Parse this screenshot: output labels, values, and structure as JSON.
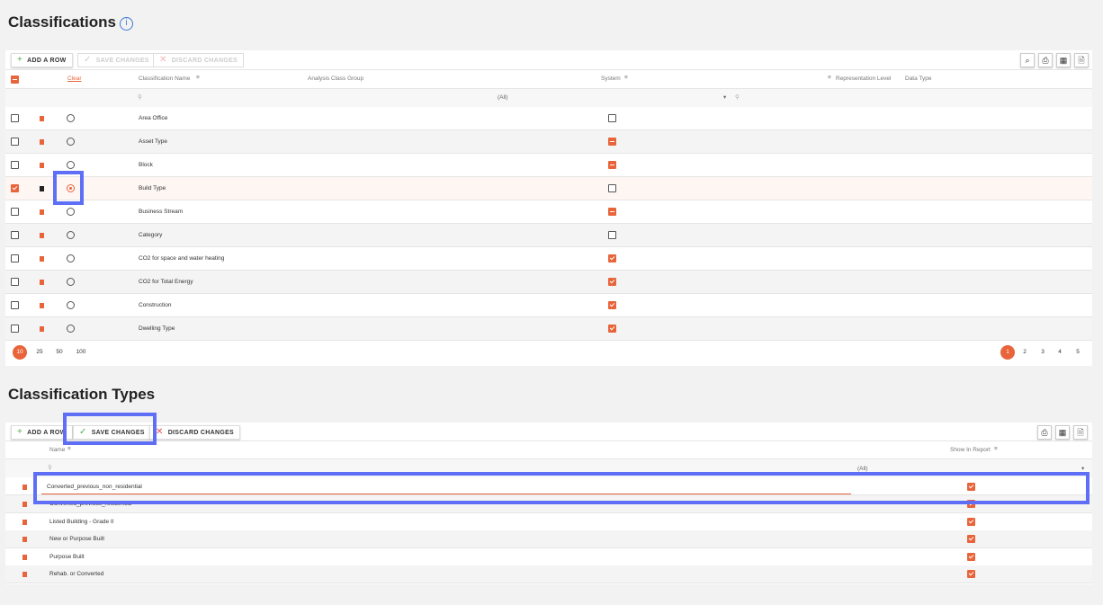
{
  "classifications": {
    "title": "Classifications",
    "info_icon": "i",
    "toolbar": {
      "add": "ADD A ROW",
      "save": "SAVE CHANGES",
      "discard": "DISCARD CHANGES"
    },
    "export_icons": [
      "search-export-icon",
      "print-icon",
      "excel-icon",
      "pdf-icon"
    ],
    "headers": {
      "clear": "Clear",
      "name": "Classification Name",
      "analysis": "Analysis Class Group",
      "system": "System",
      "rep_level": "Representation Level",
      "data_type": "Data Type"
    },
    "filter": {
      "system_value": "(All)"
    },
    "rows": [
      {
        "name": "Area Office",
        "system": "unchecked",
        "selected": false
      },
      {
        "name": "Asset Type",
        "system": "indeterminate",
        "selected": false
      },
      {
        "name": "Block",
        "system": "indeterminate",
        "selected": false
      },
      {
        "name": "Build Type",
        "system": "unchecked",
        "selected": true
      },
      {
        "name": "Business Stream",
        "system": "indeterminate",
        "selected": false
      },
      {
        "name": "Category",
        "system": "unchecked",
        "selected": false
      },
      {
        "name": "CO2 for space and water heating",
        "system": "checked",
        "selected": false
      },
      {
        "name": "CO2 for Total Energy",
        "system": "checked",
        "selected": false
      },
      {
        "name": "Construction",
        "system": "checked",
        "selected": false
      },
      {
        "name": "Dwelling Type",
        "system": "checked",
        "selected": false
      }
    ],
    "page_sizes": [
      "10",
      "25",
      "50",
      "100"
    ],
    "active_page_size": "10",
    "pages": [
      "1",
      "2",
      "3",
      "4",
      "5"
    ],
    "active_page": "1"
  },
  "classification_types": {
    "title": "Classification Types",
    "toolbar": {
      "add": "ADD A ROW",
      "save": "SAVE CHANGES",
      "discard": "DISCARD CHANGES"
    },
    "headers": {
      "name": "Name",
      "show_in_report": "Show In Report"
    },
    "filter": {
      "show_value": "(All)"
    },
    "editing_value": "Converted_previous_non_residential",
    "rows": [
      {
        "name": "Converted_previous_residential",
        "show": true
      },
      {
        "name": "Listed Building - Grade II",
        "show": true
      },
      {
        "name": "New or Purpose Built",
        "show": true
      },
      {
        "name": "Purpose Built",
        "show": true
      },
      {
        "name": "Rehab. or Converted",
        "show": true
      }
    ]
  },
  "colors": {
    "accent": "#e8643a",
    "highlight": "#5f6ff5"
  }
}
